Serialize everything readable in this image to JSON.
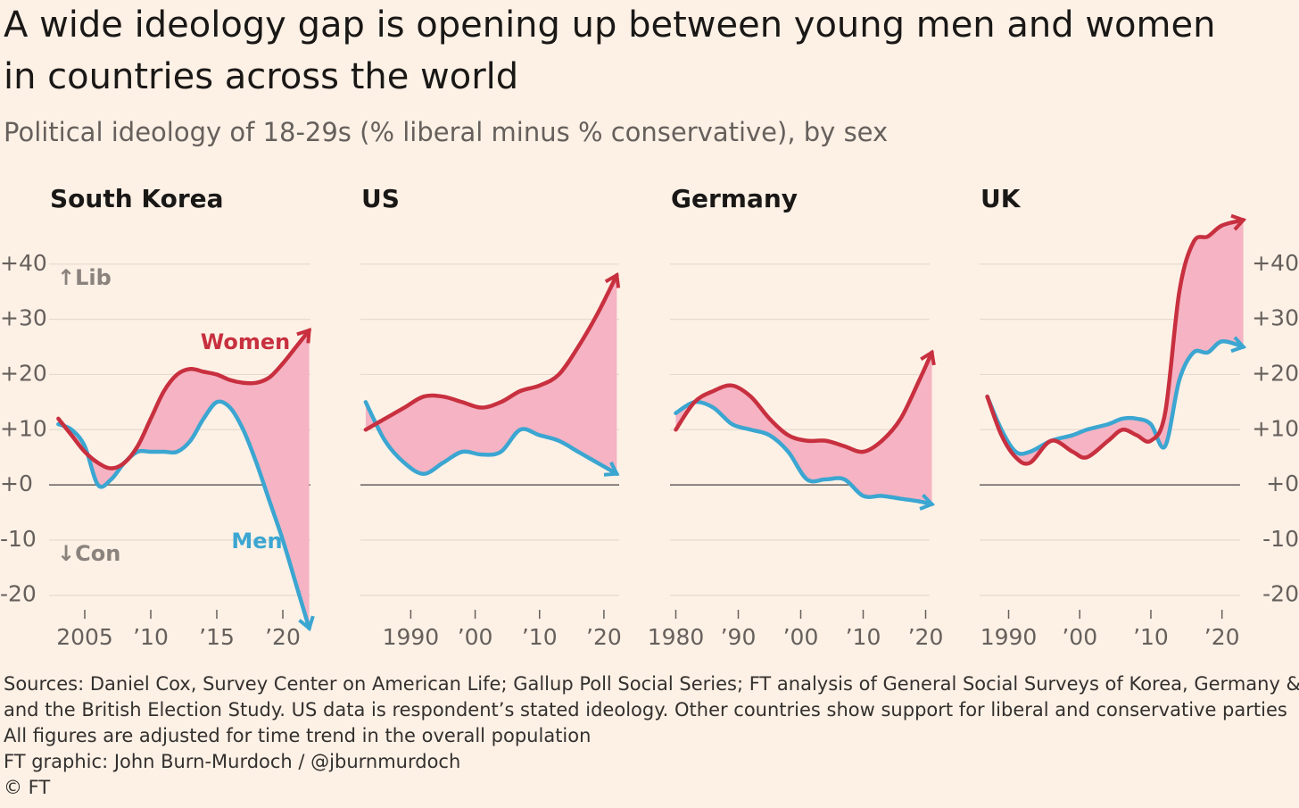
{
  "title_lines": [
    "A wide ideology gap is opening up between young men and women",
    "in countries across the world"
  ],
  "subtitle": "Political ideology of 18-29s (% liberal minus % conservative), by sex",
  "notes": [
    "Sources: Daniel Cox, Survey Center on American Life; Gallup Poll Social Series; FT analysis of General Social Surveys of Korea, Germany & US",
    "and the British Election Study. US data is respondent’s stated ideology. Other countries show support for liberal and conservative parties",
    "All figures are adjusted for time trend in the overall population",
    "FT graphic: John Burn-Murdoch / @jburnmurdoch",
    "© FT"
  ],
  "chart_data": [
    {
      "type": "line",
      "title": "South Korea",
      "ytick_labels": "left",
      "show_series_labels": true,
      "annotations": [
        "↑Lib",
        "↓Con"
      ],
      "x": [
        2003,
        2004,
        2005,
        2006,
        2007,
        2008,
        2009,
        2010,
        2011,
        2012,
        2013,
        2014,
        2015,
        2016,
        2017,
        2018,
        2019,
        2020,
        2021,
        2022
      ],
      "series": [
        {
          "name": "Women",
          "color": "#c8303f",
          "values": [
            12,
            9,
            6,
            4,
            3,
            4,
            7,
            12,
            17,
            20,
            21,
            20.5,
            20,
            19,
            18.5,
            18.5,
            19.5,
            22,
            25,
            28
          ]
        },
        {
          "name": "Men",
          "color": "#3ba6d1",
          "values": [
            11,
            10,
            7,
            0,
            1,
            4,
            6,
            6,
            6,
            6,
            8,
            12,
            15,
            14,
            10,
            4,
            -3,
            -10,
            -18,
            -26
          ]
        }
      ],
      "fill_color": "#f5b3c3",
      "xlim": [
        2002.5,
        2022.5
      ],
      "ylim": [
        -27,
        50
      ],
      "xticks": [
        2005,
        {
          "value": 2010,
          "label": "’10"
        },
        {
          "value": 2015,
          "label": "’15"
        },
        {
          "value": 2020,
          "label": "’20"
        }
      ],
      "yticks": [
        {
          "value": 40,
          "label": "+40"
        },
        {
          "value": 30,
          "label": "+30"
        },
        {
          "value": 20,
          "label": "+20"
        },
        {
          "value": 10,
          "label": "+10"
        },
        {
          "value": 0,
          "label": "+0"
        },
        -10,
        -20
      ]
    },
    {
      "type": "line",
      "title": "US",
      "ytick_labels": "none",
      "x": [
        1983,
        1986,
        1989,
        1992,
        1995,
        1998,
        2001,
        2004,
        2007,
        2010,
        2013,
        2016,
        2019,
        2022
      ],
      "series": [
        {
          "name": "Women",
          "color": "#c8303f",
          "values": [
            10,
            12,
            14,
            16,
            16,
            15,
            14,
            15,
            17,
            18,
            20,
            25,
            31,
            38
          ]
        },
        {
          "name": "Men",
          "color": "#3ba6d1",
          "values": [
            15,
            8,
            4,
            2,
            4,
            6,
            5.5,
            6,
            10,
            9,
            8,
            6,
            4,
            2
          ]
        }
      ],
      "fill_color": "#f5b3c3",
      "xlim": [
        1982.6,
        2023.2
      ],
      "ylim": [
        -27,
        50
      ],
      "xticks": [
        1990,
        {
          "value": 2000,
          "label": "’00"
        },
        {
          "value": 2010,
          "label": "’10"
        },
        {
          "value": 2020,
          "label": "’20"
        }
      ],
      "yticks": [
        {
          "value": 40,
          "label": "+40"
        },
        {
          "value": 30,
          "label": "+30"
        },
        {
          "value": 20,
          "label": "+20"
        },
        {
          "value": 10,
          "label": "+10"
        },
        {
          "value": 0,
          "label": "+0"
        },
        -10,
        -20
      ]
    },
    {
      "type": "line",
      "title": "Germany",
      "ytick_labels": "none",
      "x": [
        1980,
        1983,
        1986,
        1989,
        1992,
        1995,
        1998,
        2001,
        2004,
        2007,
        2010,
        2013,
        2016,
        2019,
        2021
      ],
      "series": [
        {
          "name": "Women",
          "color": "#c8303f",
          "values": [
            10,
            15,
            17,
            18,
            16,
            12,
            9,
            8,
            8,
            7,
            6,
            8,
            12,
            19,
            24
          ]
        },
        {
          "name": "Men",
          "color": "#3ba6d1",
          "values": [
            13,
            15,
            14,
            11,
            10,
            9,
            6,
            1,
            1,
            1,
            -2,
            -2,
            -2.5,
            -3,
            -3.5
          ]
        }
      ],
      "fill_color": "#f5b3c3",
      "xlim": [
        1979.5,
        2021.5
      ],
      "ylim": [
        -27,
        50
      ],
      "xticks": [
        1980,
        {
          "value": 1990,
          "label": "’90"
        },
        {
          "value": 2000,
          "label": "’00"
        },
        {
          "value": 2010,
          "label": "’10"
        },
        {
          "value": 2020,
          "label": "’20"
        }
      ],
      "yticks": [
        {
          "value": 40,
          "label": "+40"
        },
        {
          "value": 30,
          "label": "+30"
        },
        {
          "value": 20,
          "label": "+20"
        },
        {
          "value": 10,
          "label": "+10"
        },
        {
          "value": 0,
          "label": "+0"
        },
        -10,
        -20
      ]
    },
    {
      "type": "line",
      "title": "UK",
      "ytick_labels": "right",
      "x": [
        1987,
        1989,
        1991,
        1993,
        1996,
        1999,
        2001,
        2004,
        2006,
        2008,
        2010,
        2012,
        2014,
        2016,
        2018,
        2020,
        2023
      ],
      "series": [
        {
          "name": "Women",
          "color": "#c8303f",
          "values": [
            16,
            9,
            5,
            4,
            8,
            6,
            5,
            8,
            10,
            9,
            8,
            13,
            35,
            44,
            45,
            47,
            48
          ]
        },
        {
          "name": "Men",
          "color": "#3ba6d1",
          "values": [
            16,
            10,
            6,
            6,
            8,
            9,
            10,
            11,
            12,
            12,
            11,
            7,
            19,
            24,
            24,
            26,
            25
          ]
        }
      ],
      "fill_color": "#f5b3c3",
      "xlim": [
        1986.3,
        2023.3
      ],
      "ylim": [
        -27,
        50
      ],
      "xticks": [
        1990,
        {
          "value": 2000,
          "label": "’00"
        },
        {
          "value": 2010,
          "label": "’10"
        },
        {
          "value": 2020,
          "label": "’20"
        }
      ],
      "yticks": [
        {
          "value": 40,
          "label": "+40"
        },
        {
          "value": 30,
          "label": "+30"
        },
        {
          "value": 20,
          "label": "+20"
        },
        {
          "value": 10,
          "label": "+10"
        },
        {
          "value": 0,
          "label": "+0"
        },
        -10,
        -20
      ]
    }
  ]
}
